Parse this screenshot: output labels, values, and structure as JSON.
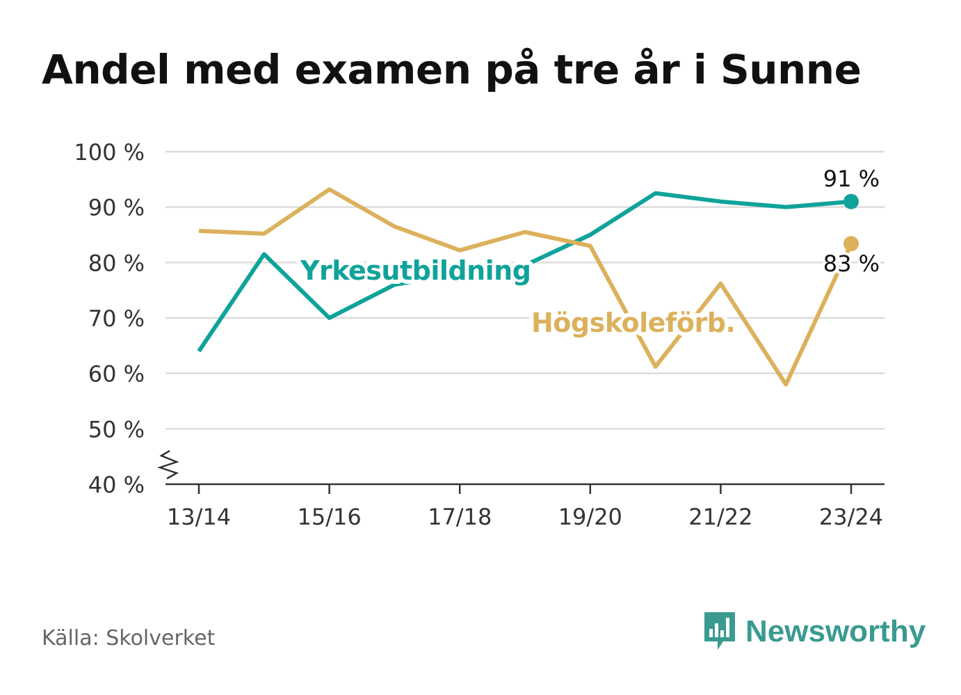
{
  "chart_data": {
    "type": "line",
    "title": "Andel med examen på tre år i Sunne",
    "categories": [
      "13/14",
      "14/15",
      "15/16",
      "16/17",
      "17/18",
      "18/19",
      "19/20",
      "20/21",
      "21/22",
      "22/23",
      "23/24"
    ],
    "x_tick_labels": [
      "13/14",
      "15/16",
      "17/18",
      "19/20",
      "21/22",
      "23/24"
    ],
    "y_ticks": [
      40,
      50,
      60,
      70,
      80,
      90,
      100
    ],
    "y_tick_labels": [
      "40 %",
      "50 %",
      "60 %",
      "70 %",
      "80 %",
      "90 %",
      "100 %"
    ],
    "ylim": [
      40,
      100
    ],
    "axis_break": true,
    "grid": true,
    "series": [
      {
        "name": "Yrkesutbildning",
        "color": "#0fa39a",
        "values": [
          64,
          81.5,
          70,
          76,
          78,
          79.5,
          85,
          92.5,
          91,
          90,
          91
        ],
        "end_label": "91 %"
      },
      {
        "name": "Högskoleförb.",
        "color": "#dcb15c",
        "values": [
          85.7,
          85.2,
          93.2,
          86.5,
          82.2,
          85.5,
          83,
          61.2,
          76.2,
          58,
          83.4
        ],
        "end_label": "83 %"
      }
    ]
  },
  "source": "Källa: Skolverket",
  "brand": "Newsworthy",
  "brand_icon": "bar-chart-speech-bubble-icon"
}
